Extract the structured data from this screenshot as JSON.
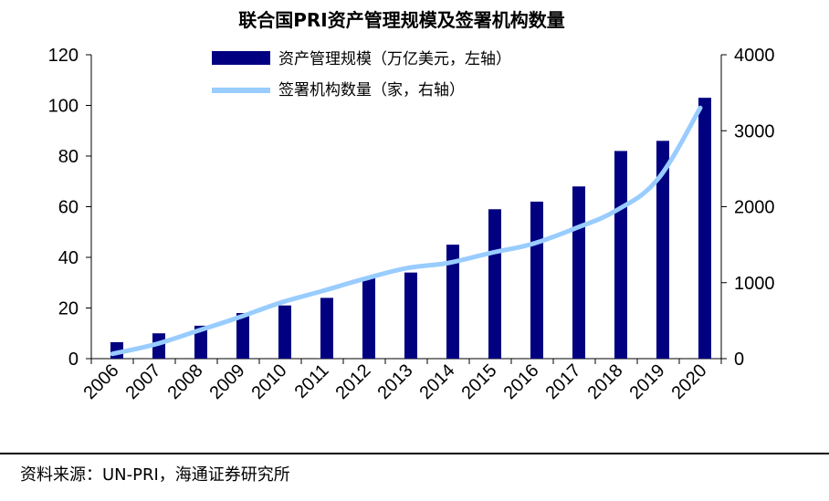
{
  "chart_data": {
    "type": "bar",
    "title": "联合国PRI资产管理规模及签署机构数量",
    "categories": [
      "2006",
      "2007",
      "2008",
      "2009",
      "2010",
      "2011",
      "2012",
      "2013",
      "2014",
      "2015",
      "2016",
      "2017",
      "2018",
      "2019",
      "2020"
    ],
    "series": [
      {
        "name": "资产管理规模（万亿美元，左轴）",
        "type": "bar",
        "axis": "left",
        "color": "#000080",
        "values": [
          6.5,
          10,
          13,
          18,
          21,
          24,
          32,
          34,
          45,
          59,
          62,
          68,
          82,
          86,
          103
        ]
      },
      {
        "name": "签署机构数量（家，右轴）",
        "type": "line",
        "axis": "right",
        "color": "#99CCFF",
        "values": [
          63,
          185,
          360,
          540,
          735,
          890,
          1050,
          1190,
          1260,
          1390,
          1510,
          1710,
          1950,
          2370,
          3300
        ]
      }
    ],
    "y_left": {
      "min": 0,
      "max": 120,
      "ticks": [
        0,
        20,
        40,
        60,
        80,
        100,
        120
      ]
    },
    "y_right": {
      "min": 0,
      "max": 4000,
      "ticks": [
        0,
        1000,
        2000,
        3000,
        4000
      ]
    },
    "grid": false,
    "legend_position": "top"
  },
  "source": "资料来源：UN-PRI，海通证券研究所"
}
